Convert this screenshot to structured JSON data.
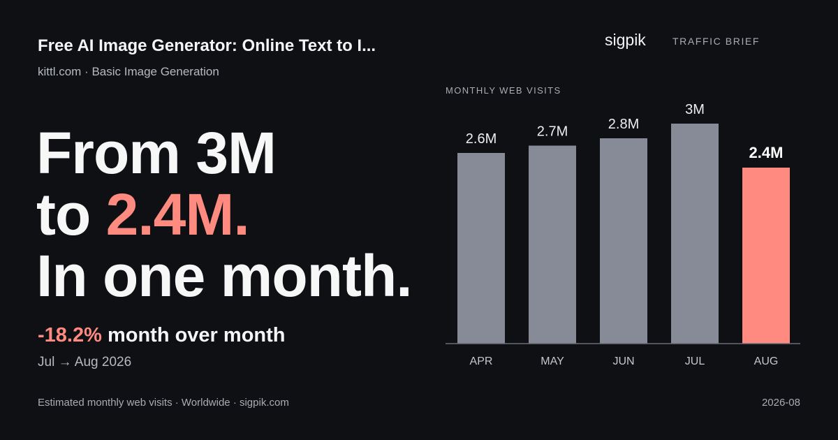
{
  "header": {
    "title": "Free AI Image Generator: Online Text to I...",
    "subtitle": "kittl.com · Basic Image Generation"
  },
  "headline": {
    "line1": "From 3M",
    "line2_prefix": "to ",
    "line2_accent": "2.4M.",
    "line3": "In one month."
  },
  "change": {
    "percent": "-18.2%",
    "label": " month over month",
    "period": "Jul → Aug 2026"
  },
  "brand": {
    "name": "sigpik",
    "tag": "TRAFFIC BRIEF"
  },
  "footer": {
    "source": "Estimated monthly web visits · Worldwide · sigpik.com",
    "date": "2026-08"
  },
  "colors": {
    "background": "#0e1014",
    "bar": "#878b98",
    "highlight": "#ff8a80"
  },
  "chart_data": {
    "type": "bar",
    "title": "MONTHLY WEB VISITS",
    "categories": [
      "APR",
      "MAY",
      "JUN",
      "JUL",
      "AUG"
    ],
    "values": [
      2.6,
      2.7,
      2.8,
      3.0,
      2.4
    ],
    "value_labels": [
      "2.6M",
      "2.7M",
      "2.8M",
      "3M",
      "2.4M"
    ],
    "unit": "M",
    "highlight_index": 4,
    "ylim": [
      0,
      3.2
    ],
    "grid": false,
    "legend": "none"
  }
}
